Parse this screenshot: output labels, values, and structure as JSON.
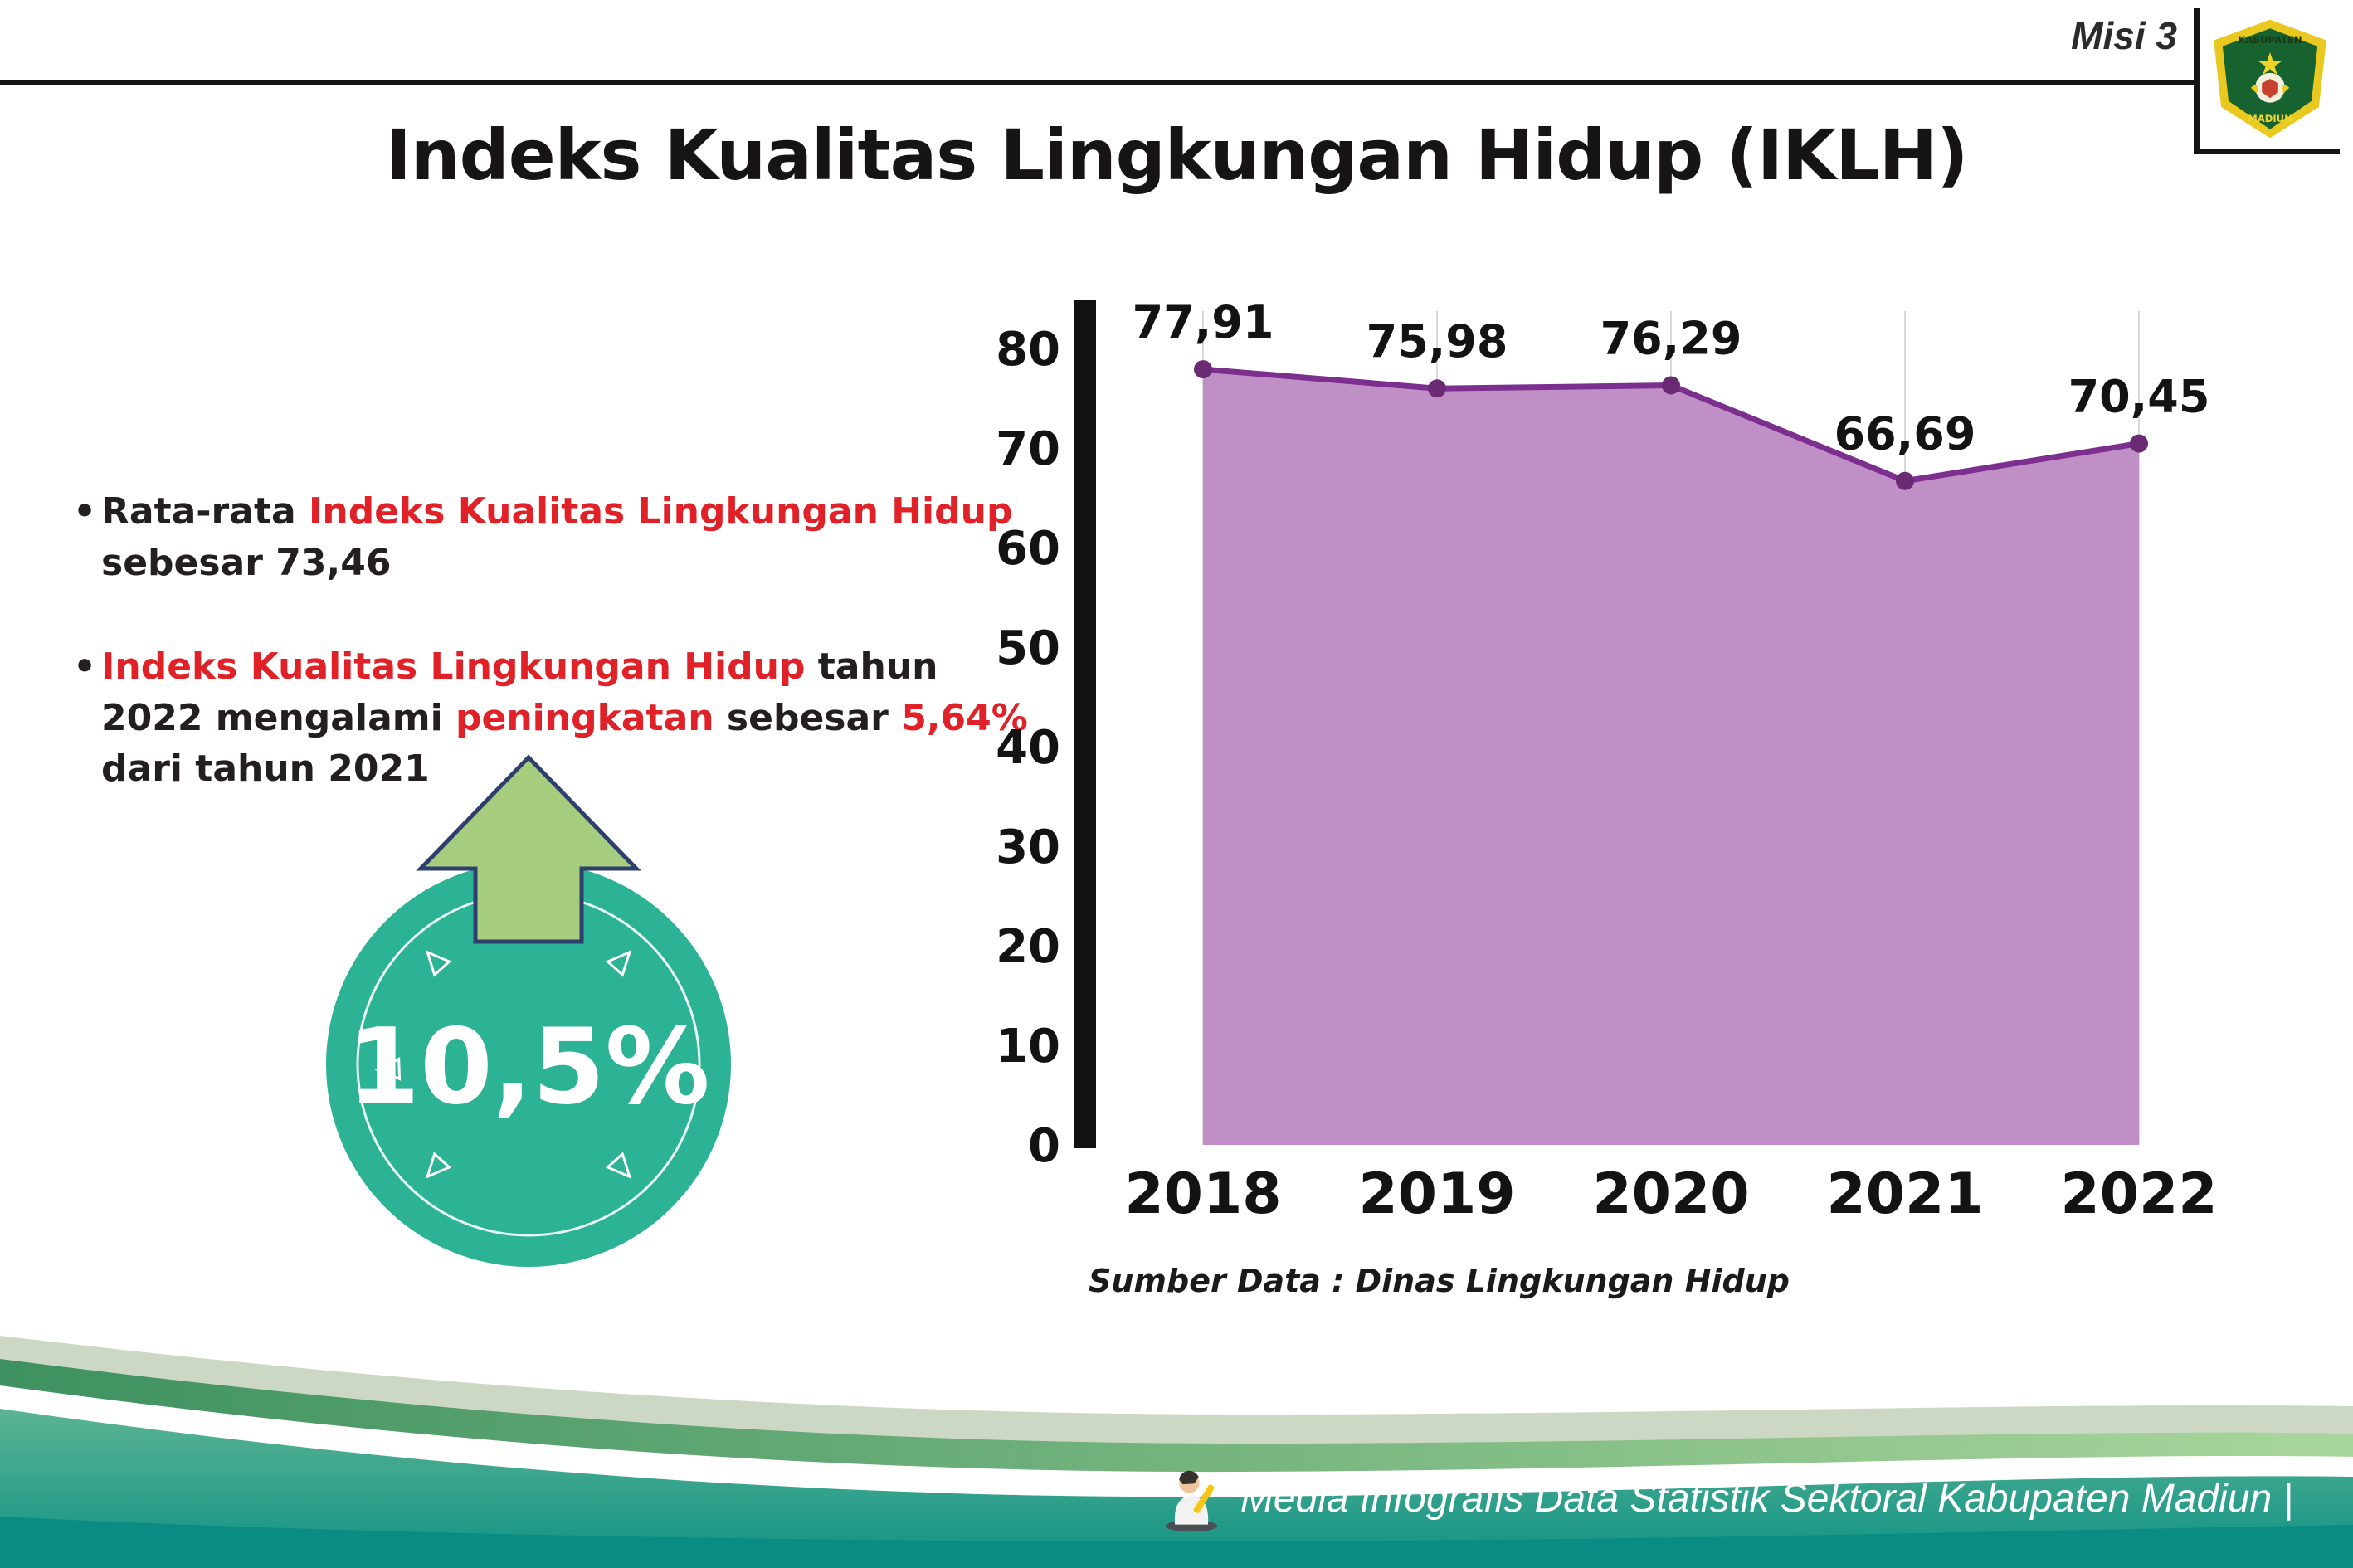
{
  "header": {
    "misi_label": "Misi 3",
    "logo_top": "KABUPATEN",
    "logo_bottom": "MADIUN"
  },
  "title": "Indeks Kualitas Lingkungan Hidup (IKLH)",
  "bullets": [
    {
      "segments": [
        {
          "text": "Rata-rata ",
          "color": "dark"
        },
        {
          "text": "Indeks Kualitas Lingkungan Hidup",
          "color": "red"
        },
        {
          "text": " sebesar 73,46",
          "color": "dark"
        }
      ]
    },
    {
      "segments": [
        {
          "text": "Indeks Kualitas Lingkungan Hidup",
          "color": "red"
        },
        {
          "text": " tahun 2022 mengalami ",
          "color": "dark"
        },
        {
          "text": "peningkatan",
          "color": "red"
        },
        {
          "text": " sebesar ",
          "color": "dark"
        },
        {
          "text": "5,64%",
          "color": "red"
        },
        {
          "text": " dari tahun 2021",
          "color": "dark"
        }
      ]
    }
  ],
  "badge": {
    "value": "10,5%",
    "circle_color": "#2cb294",
    "arrow_color": "#a5cd7d"
  },
  "colors": {
    "highlight_red": "#e02128",
    "text_dark": "#231f20",
    "footer_teal": "#16968a"
  },
  "chart_data": {
    "type": "area",
    "title": "",
    "categories": [
      "2018",
      "2019",
      "2020",
      "2021",
      "2022"
    ],
    "values": [
      77.91,
      75.98,
      76.29,
      66.69,
      70.45
    ],
    "value_labels": [
      "77,91",
      "75,98",
      "76,29",
      "66,69",
      "70,45"
    ],
    "xlabel": "",
    "ylabel": "",
    "ylim": [
      0,
      80
    ],
    "yticks": [
      0,
      10,
      20,
      30,
      40,
      50,
      60,
      70,
      80
    ],
    "grid": "vertical-light",
    "legend": "none",
    "line_color": "#7c2f8e",
    "fill_color": "#c08fc6",
    "marker_color": "#6b2a74",
    "source": "Sumber Data : Dinas Lingkungan Hidup"
  },
  "footer": {
    "text": "Media Infografis Data Statistik Sektoral Kabupaten Madiun |"
  }
}
